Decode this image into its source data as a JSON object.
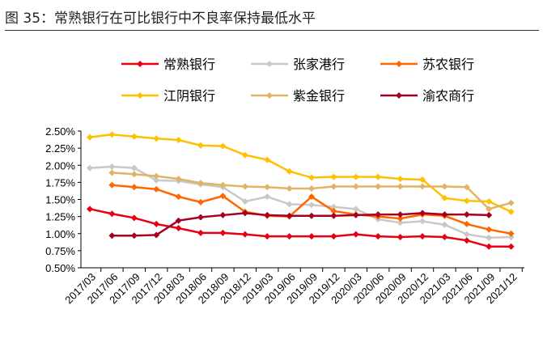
{
  "title": "图 35：常熟银行在可比银行中不良率保持最低水平",
  "chart_data": {
    "type": "line",
    "title": "图 35：常熟银行在可比银行中不良率保持最低水平",
    "categories": [
      "2017/03",
      "2017/06",
      "2017/09",
      "2017/12",
      "2018/03",
      "2018/06",
      "2018/09",
      "2018/12",
      "2019/03",
      "2019/06",
      "2019/09",
      "2019/12",
      "2020/03",
      "2020/06",
      "2020/09",
      "2020/12",
      "2021/03",
      "2021/06",
      "2021/09",
      "2021/12"
    ],
    "ylim": [
      0.5,
      2.5
    ],
    "yticks": [
      "0.50%",
      "0.75%",
      "1.00%",
      "1.25%",
      "1.50%",
      "1.75%",
      "2.00%",
      "2.25%",
      "2.50%"
    ],
    "legend_position": "top",
    "series": [
      {
        "name": "常熟银行",
        "color": "#e60012",
        "values": [
          1.36,
          1.29,
          1.23,
          1.14,
          1.08,
          1.01,
          1.01,
          0.99,
          0.96,
          0.96,
          0.96,
          0.96,
          0.99,
          0.96,
          0.95,
          0.96,
          0.95,
          0.9,
          0.81,
          0.81
        ]
      },
      {
        "name": "张家港行",
        "color": "#c8c8c8",
        "values": [
          1.96,
          1.98,
          1.96,
          1.78,
          1.77,
          1.72,
          1.68,
          1.47,
          1.54,
          1.43,
          1.42,
          1.39,
          1.36,
          1.21,
          1.16,
          1.18,
          1.13,
          0.99,
          0.94,
          0.95
        ]
      },
      {
        "name": "苏农银行",
        "color": "#ff6600",
        "values": [
          null,
          1.71,
          1.68,
          1.65,
          1.54,
          1.46,
          1.55,
          1.32,
          1.26,
          1.25,
          1.54,
          1.33,
          1.28,
          1.25,
          1.22,
          1.28,
          1.26,
          1.14,
          1.06,
          1.0
        ]
      },
      {
        "name": "江阴银行",
        "color": "#ffc000",
        "values": [
          2.41,
          2.45,
          2.42,
          2.39,
          2.37,
          2.29,
          2.28,
          2.15,
          2.08,
          1.91,
          1.82,
          1.83,
          1.83,
          1.83,
          1.8,
          1.79,
          1.52,
          1.48,
          1.47,
          1.32
        ]
      },
      {
        "name": "紫金银行",
        "color": "#dfb564",
        "values": [
          null,
          1.89,
          1.87,
          1.84,
          1.8,
          1.74,
          1.71,
          1.69,
          1.68,
          1.66,
          1.66,
          1.69,
          1.69,
          1.69,
          1.69,
          1.69,
          1.69,
          1.68,
          1.36,
          1.45
        ]
      },
      {
        "name": "渝农商行",
        "color": "#a50021",
        "values": [
          null,
          0.97,
          0.97,
          0.98,
          1.19,
          1.24,
          1.27,
          1.3,
          1.27,
          1.26,
          1.26,
          1.26,
          1.27,
          1.28,
          1.28,
          1.3,
          1.28,
          1.28,
          1.27,
          null
        ]
      }
    ]
  }
}
